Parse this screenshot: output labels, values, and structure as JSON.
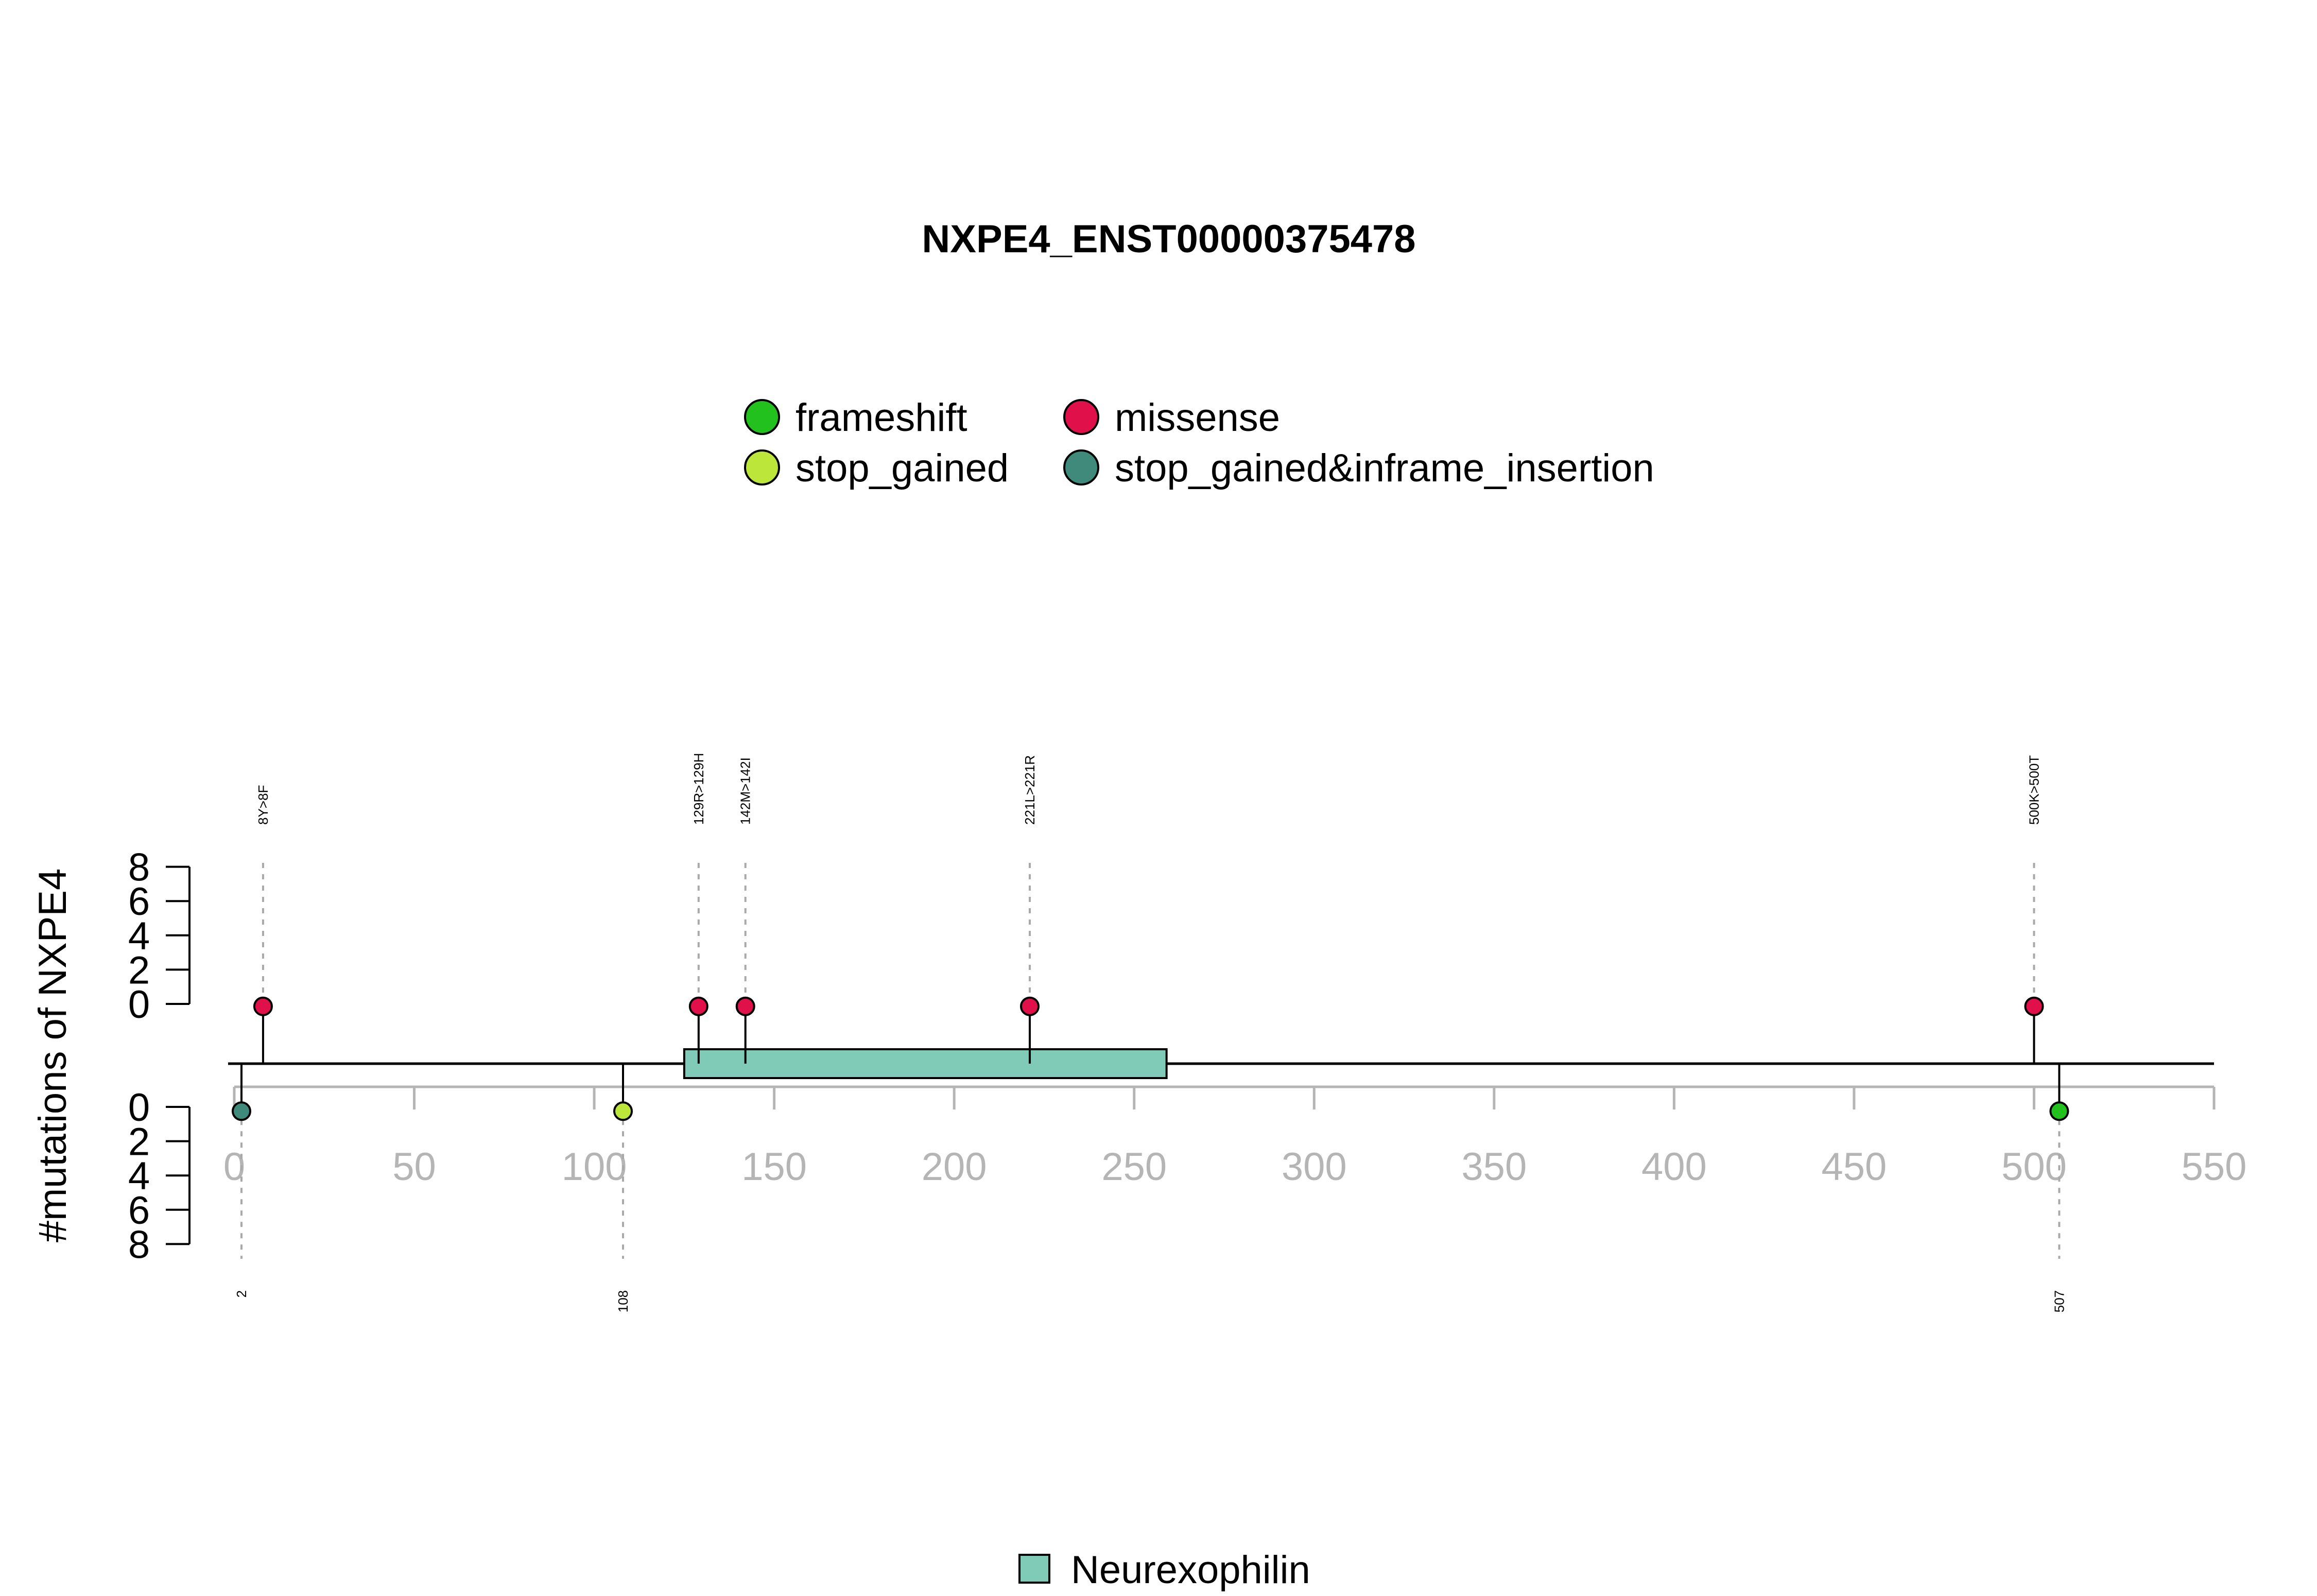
{
  "chart_data": {
    "type": "lollipop",
    "title": "NXPE4_ENST00000375478",
    "ylabel": "#mutations of NXPE4",
    "xlim": [
      0,
      550
    ],
    "x_ticks": [
      0,
      50,
      100,
      150,
      200,
      250,
      300,
      350,
      400,
      450,
      500,
      550
    ],
    "y_ticks": [
      0,
      2,
      4,
      6,
      8
    ],
    "protein_length": 550,
    "legend": {
      "placement": "top",
      "items": [
        {
          "label": "frameshift",
          "color": "#22c11e"
        },
        {
          "label": "missense",
          "color": "#e0114a"
        },
        {
          "label": "stop_gained",
          "color": "#bde63a"
        },
        {
          "label": "stop_gained&inframe_insertion",
          "color": "#3f8a7a"
        }
      ]
    },
    "domains": [
      {
        "name": "Neurexophilin",
        "start": 125,
        "end": 259,
        "color": "#7fcbb8"
      }
    ],
    "mutations_top": [
      {
        "position": 8,
        "count": 1,
        "type": "missense",
        "label": "8Y>8F"
      },
      {
        "position": 129,
        "count": 1,
        "type": "missense",
        "label": "129R>129H"
      },
      {
        "position": 142,
        "count": 1,
        "type": "missense",
        "label": "142M>142I"
      },
      {
        "position": 221,
        "count": 1,
        "type": "missense",
        "label": "221L>221R"
      },
      {
        "position": 500,
        "count": 1,
        "type": "missense",
        "label": "500K>500T"
      }
    ],
    "mutations_bottom": [
      {
        "position": 2,
        "count": 1,
        "type": "stop_gained&inframe_insertion",
        "label": "2"
      },
      {
        "position": 108,
        "count": 1,
        "type": "stop_gained",
        "label": "108"
      },
      {
        "position": 507,
        "count": 1,
        "type": "frameshift",
        "label": "507"
      }
    ],
    "domain_legend": [
      {
        "label": "Neurexophilin",
        "color": "#7fcbb8"
      }
    ]
  }
}
